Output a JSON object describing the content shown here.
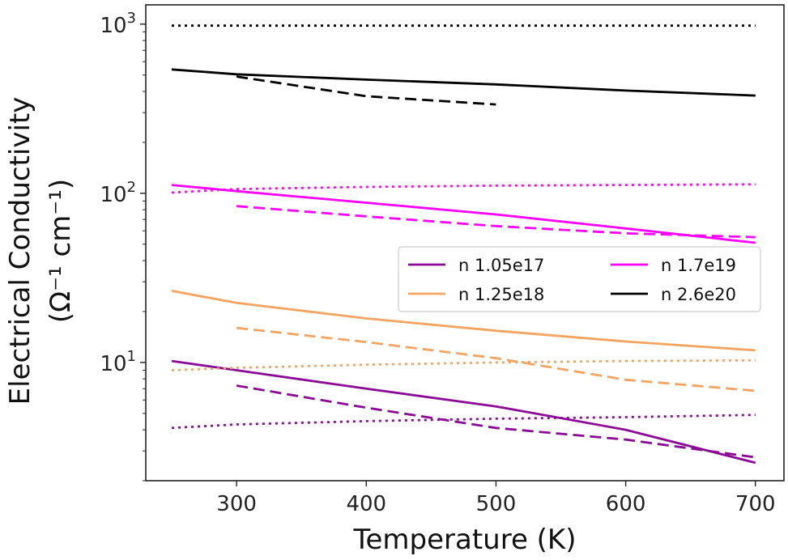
{
  "chart_data": {
    "type": "line",
    "title": "",
    "xlabel": "Temperature (K)",
    "ylabel_line1": "Electrical Conductivity",
    "ylabel_line2": "(Ω⁻¹ cm⁻¹)",
    "yscale": "log",
    "xlim": [
      230,
      722
    ],
    "ylim": [
      2.0,
      1300
    ],
    "x_ticks": [
      300,
      400,
      500,
      600,
      700
    ],
    "y_ticks": [
      {
        "value": 10,
        "base": "10",
        "exp": "1"
      },
      {
        "value": 100,
        "base": "10",
        "exp": "2"
      },
      {
        "value": 1000,
        "base": "10",
        "exp": "3"
      }
    ],
    "grid": false,
    "legend": {
      "position": "center-right",
      "columns": 2,
      "entries": [
        {
          "label": "n 1.05e17",
          "color": "#8B0A96"
        },
        {
          "label": "n 1.25e18",
          "color": "#F4A460"
        },
        {
          "label": "n 1.7e19",
          "color": "#FF00FF"
        },
        {
          "label": "n 2.6e20",
          "color": "#000000"
        }
      ]
    },
    "series": [
      {
        "name": "n 1.05e17",
        "style": "solid",
        "color": "#8B0A96",
        "x": [
          250,
          300,
          400,
          500,
          600,
          700
        ],
        "y": [
          10.2,
          9.0,
          7.0,
          5.5,
          4.0,
          2.55
        ]
      },
      {
        "name": "n 1.05e17",
        "style": "dashed",
        "color": "#8B0A96",
        "x": [
          300,
          400,
          500,
          600,
          700
        ],
        "y": [
          7.3,
          5.4,
          4.1,
          3.5,
          2.75
        ]
      },
      {
        "name": "n 1.05e17",
        "style": "dotted",
        "color": "#8B0A96",
        "x": [
          250,
          300,
          400,
          500,
          600,
          700
        ],
        "y": [
          4.1,
          4.3,
          4.5,
          4.65,
          4.75,
          4.9
        ]
      },
      {
        "name": "n 1.25e18",
        "style": "solid",
        "color": "#F4A460",
        "x": [
          250,
          300,
          400,
          500,
          600,
          700
        ],
        "y": [
          26.5,
          22.5,
          18.2,
          15.4,
          13.3,
          11.8
        ]
      },
      {
        "name": "n 1.25e18",
        "style": "dashed",
        "color": "#F4A460",
        "x": [
          300,
          400,
          500,
          600,
          700
        ],
        "y": [
          16.0,
          13.2,
          10.6,
          7.9,
          6.8
        ]
      },
      {
        "name": "n 1.25e18",
        "style": "dotted",
        "color": "#F4A460",
        "x": [
          250,
          300,
          400,
          500,
          600,
          700
        ],
        "y": [
          9.0,
          9.3,
          9.7,
          10.0,
          10.2,
          10.3
        ]
      },
      {
        "name": "n 1.7e19",
        "style": "solid",
        "color": "#FF00FF",
        "x": [
          250,
          300,
          400,
          500,
          600,
          700
        ],
        "y": [
          112,
          103,
          88,
          75,
          62,
          51
        ]
      },
      {
        "name": "n 1.7e19",
        "style": "dashed",
        "color": "#FF00FF",
        "x": [
          300,
          400,
          500,
          600,
          700
        ],
        "y": [
          84,
          73,
          64,
          58,
          55
        ]
      },
      {
        "name": "n 1.7e19",
        "style": "dotted",
        "color": "#FF00FF",
        "x": [
          250,
          300,
          400,
          500,
          600,
          700
        ],
        "y": [
          101,
          106,
          109,
          111,
          112,
          113
        ]
      },
      {
        "name": "n 2.6e20",
        "style": "solid",
        "color": "#000000",
        "x": [
          250,
          300,
          400,
          500,
          600,
          700
        ],
        "y": [
          540,
          505,
          470,
          440,
          405,
          378
        ]
      },
      {
        "name": "n 2.6e20",
        "style": "dashed",
        "color": "#000000",
        "x": [
          300,
          400,
          500
        ],
        "y": [
          490,
          375,
          335
        ]
      },
      {
        "name": "n 2.6e20",
        "style": "dotted",
        "color": "#000000",
        "x": [
          250,
          300,
          400,
          500,
          600,
          700
        ],
        "y": [
          980,
          980,
          980,
          980,
          980,
          980
        ]
      }
    ]
  }
}
